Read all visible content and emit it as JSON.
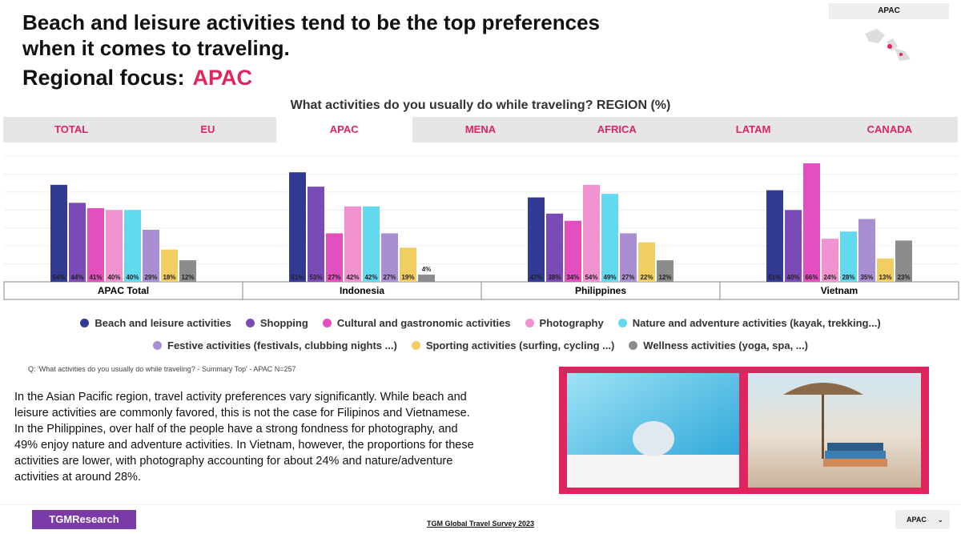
{
  "header": {
    "title_lines": [
      "Beach and leisure activities tend to be the top preferences",
      "when it comes to traveling."
    ],
    "focus_label": "Regional focus:",
    "focus_region": "APAC",
    "region_box": "APAC"
  },
  "tabs": [
    "TOTAL",
    "EU",
    "APAC",
    "MENA",
    "AFRICA",
    "LATAM",
    "CANADA"
  ],
  "active_tab": 2,
  "chart_data": {
    "type": "bar",
    "title": "What activities do you usually do while traveling? REGION (%)",
    "categories": [
      "APAC Total",
      "Indonesia",
      "Philippines",
      "Vietnam"
    ],
    "series": [
      {
        "name": "Beach and leisure activities",
        "color": "#323a93",
        "values": [
          54,
          61,
          47,
          51
        ],
        "value_labels": [
          "54%",
          "61%",
          "47%",
          "51%"
        ]
      },
      {
        "name": "Shopping",
        "color": "#7a4bb6",
        "values": [
          44,
          53,
          38,
          40
        ],
        "value_labels": [
          "44%",
          "53%",
          "38%",
          "40%"
        ]
      },
      {
        "name": "Cultural and gastronomic activities",
        "color": "#e44fc0",
        "values": [
          41,
          27,
          34,
          66
        ],
        "value_labels": [
          "41%",
          "27%",
          "34%",
          "66%"
        ]
      },
      {
        "name": "Photography",
        "color": "#ef92cf",
        "values": [
          40,
          42,
          54,
          24
        ],
        "value_labels": [
          "40%",
          "42%",
          "54%",
          "24%"
        ]
      },
      {
        "name": "Nature and adventure activities (kayak, trekking...)",
        "color": "#63d9f0",
        "values": [
          40,
          42,
          49,
          28
        ],
        "value_labels": [
          "40%",
          "42%",
          "49%",
          "28%"
        ]
      },
      {
        "name": "Festive activities (festivals, clubbing nights ...)",
        "color": "#a98fd2",
        "values": [
          29,
          27,
          27,
          35
        ],
        "value_labels": [
          "29%",
          "27%",
          "27%",
          "35%"
        ]
      },
      {
        "name": "Sporting activities (surfing, cycling ...)",
        "color": "#f2cd62",
        "values": [
          18,
          19,
          22,
          13
        ],
        "value_labels": [
          "18%",
          "19%",
          "22%",
          "13%"
        ]
      },
      {
        "name": "Wellness activities (yoga, spa, ...)",
        "color": "#8c8c8c",
        "values": [
          12,
          4,
          12,
          23
        ],
        "value_labels": [
          "12%",
          "4%",
          "12%",
          "23%"
        ]
      }
    ],
    "ylim": [
      0,
      70
    ],
    "yticks": [
      0,
      10,
      20,
      30,
      40,
      50,
      60,
      70
    ],
    "grid": true
  },
  "note": "Q: 'What activities do you usually do while traveling? - Summary Top' - APAC N=257",
  "paragraph_lines": [
    "In the Asian Pacific region, travel activity preferences vary significantly. While beach and",
    "leisure activities are commonly favored, this is not the case for Filipinos and Vietnamese.",
    "In the Philippines, over half of the people have a strong fondness for photography, and",
    "49% enjoy nature and adventure activities. In Vietnam, however, the proportions for these",
    "activities are lower, with photography accounting for about 24% and nature/adventure",
    "activities at around 28%."
  ],
  "footer": {
    "logo": "TGMResearch",
    "survey": "TGM Global Travel Survey 2023",
    "dropdown": "APAC"
  }
}
